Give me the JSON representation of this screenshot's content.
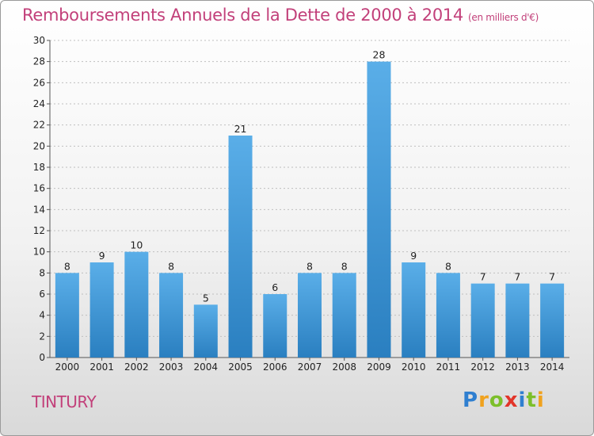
{
  "title": "Remboursements Annuels de la Dette de 2000 à 2014",
  "subtitle": "(en milliers d'€)",
  "commune": "TINTURY",
  "logo": {
    "letters": [
      "P",
      "r",
      "o",
      "x",
      "i",
      "t",
      "i"
    ],
    "colors": [
      "#2f7fd0",
      "#f0a21e",
      "#7cbf2a",
      "#e2352a",
      "#2f7fd0",
      "#7cbf2a",
      "#f0a21e"
    ]
  },
  "colors": {
    "bar_light": "#5aaee8",
    "bar_dark": "#2a7fc0",
    "title": "#c2407a",
    "grid": "#bfbfbf"
  },
  "chart_data": {
    "type": "bar",
    "title": "Remboursements Annuels de la Dette de 2000 à 2014",
    "subtitle": "(en milliers d'€)",
    "categories": [
      "2000",
      "2001",
      "2002",
      "2003",
      "2004",
      "2005",
      "2006",
      "2007",
      "2008",
      "2009",
      "2010",
      "2011",
      "2012",
      "2013",
      "2014"
    ],
    "values": [
      8,
      9,
      10,
      8,
      5,
      21,
      6,
      8,
      8,
      28,
      9,
      8,
      7,
      7,
      7
    ],
    "ylim": [
      0,
      30
    ],
    "yticks": [
      0,
      2,
      4,
      6,
      8,
      10,
      12,
      14,
      16,
      18,
      20,
      22,
      24,
      26,
      28,
      30
    ],
    "grid": true,
    "xlabel": "",
    "ylabel": ""
  }
}
